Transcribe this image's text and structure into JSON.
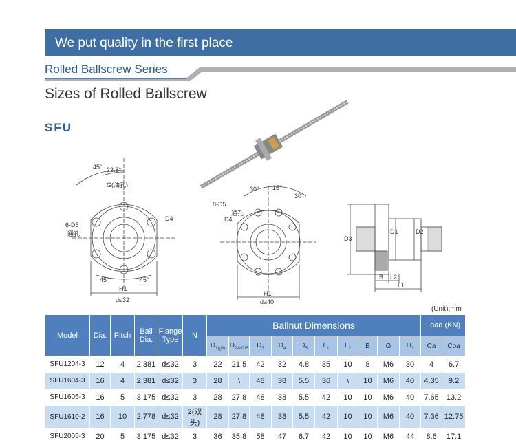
{
  "header": {
    "banner": "We put quality in the first place",
    "series": "Rolled Ballscrew Series",
    "section": "Sizes of Rolled Ballscrew",
    "model": "SFU"
  },
  "drawings": {
    "flange_a": {
      "angle_outer": "45°",
      "angle_inner": "22.5°",
      "oil_hole": "G(油孔)",
      "holes": "6-D5",
      "through": "通孔",
      "d4": "D4",
      "angle_left": "45°",
      "angle_right": "45°",
      "h1": "H1",
      "range": "d≤32"
    },
    "flange_b": {
      "angle_left": "30°",
      "angle_mid": "15°",
      "angle_right": "30°",
      "holes": "8-D5",
      "through": "通孔",
      "d4": "D4",
      "h1": "H1",
      "range": "d≥40"
    },
    "side": {
      "d3": "D3",
      "d1": "D1",
      "d2": "D2",
      "b": "B",
      "l2": "L2",
      "l1": "L1"
    }
  },
  "table": {
    "unit": "(Unit);mm",
    "headers": [
      "Model",
      "Dia.",
      "Pitch",
      "Ball Dia.",
      "Flange Type",
      "N"
    ],
    "group": "Ballnut Dimensions",
    "load": "Load (KN)",
    "subheaders": [
      {
        "main": "D",
        "sub": "1(g6)"
      },
      {
        "main": "D",
        "sub": "2-0.015"
      },
      {
        "main": "D",
        "sub": "3"
      },
      {
        "main": "D",
        "sub": "4"
      },
      {
        "main": "D",
        "sub": "5"
      },
      {
        "main": "L",
        "sub": "1"
      },
      {
        "main": "L",
        "sub": "2"
      },
      {
        "main": "B",
        "sub": ""
      },
      {
        "main": "G",
        "sub": ""
      },
      {
        "main": "H",
        "sub": "1"
      },
      {
        "main": "Ca",
        "sub": ""
      },
      {
        "main": "Coa",
        "sub": ""
      }
    ],
    "rows": [
      [
        "SFU1204-3",
        12,
        4,
        2.381,
        "d≤32",
        3,
        22,
        21.5,
        42,
        32,
        4.8,
        35,
        10,
        8,
        "M6",
        30,
        4,
        6.7
      ],
      [
        "SFU1604-3",
        16,
        4,
        2.381,
        "d≤32",
        3,
        28,
        "\\",
        48,
        38,
        5.5,
        36,
        "\\",
        10,
        "M6",
        40,
        4.35,
        9.2
      ],
      [
        "SFU1605-3",
        16,
        5,
        3.175,
        "d≤32",
        3,
        28,
        27.8,
        48,
        38,
        5.5,
        42,
        10,
        10,
        "M6",
        40,
        7.65,
        13.2
      ],
      [
        "SFU1610-2",
        16,
        10,
        2.778,
        "d≤32",
        "2(双头)",
        28,
        27.8,
        48,
        38,
        5.5,
        42,
        10,
        10,
        "M6",
        40,
        7.36,
        12.75
      ],
      [
        "SFU2005-3",
        20,
        5,
        3.175,
        "d≤32",
        3,
        36,
        35.8,
        58,
        47,
        6.7,
        42,
        10,
        10,
        "M6",
        44,
        8.6,
        17.1
      ]
    ]
  }
}
